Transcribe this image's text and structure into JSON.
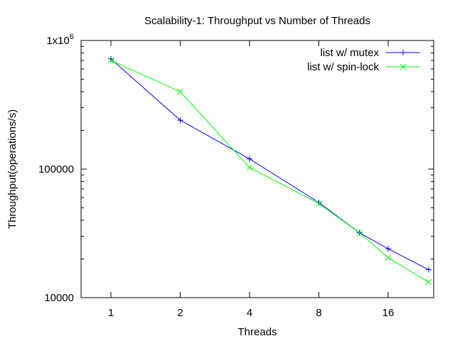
{
  "chart_data": {
    "type": "line",
    "title": "Scalability-1: Throughput vs Number of Threads",
    "xlabel": "Threads",
    "ylabel": "Throughput(operations/s)",
    "x_scale": "log2",
    "y_scale": "log10",
    "xlim": [
      0.75,
      24
    ],
    "ylim": [
      10000,
      1000000
    ],
    "x_ticks": [
      {
        "value": 1,
        "label": "1"
      },
      {
        "value": 2,
        "label": "2"
      },
      {
        "value": 4,
        "label": "4"
      },
      {
        "value": 8,
        "label": "8"
      },
      {
        "value": 16,
        "label": "16"
      }
    ],
    "y_ticks": [
      {
        "value": 10000,
        "label": "10000"
      },
      {
        "value": 100000,
        "label": "100000"
      },
      {
        "value": 1000000,
        "label": "1x10",
        "sup": "6"
      }
    ],
    "legend_position": "top-right",
    "grid": false,
    "series": [
      {
        "name": "list w/ mutex",
        "color": "#0000ff",
        "marker": "plus",
        "x": [
          1,
          2,
          4,
          8,
          12,
          16,
          24
        ],
        "y": [
          720000,
          240000,
          120000,
          55000,
          32000,
          24000,
          16500
        ]
      },
      {
        "name": "list w/ spin-lock",
        "color": "#00ff00",
        "marker": "cross",
        "x": [
          1,
          2,
          4,
          8,
          12,
          16,
          24
        ],
        "y": [
          700000,
          400000,
          103000,
          54000,
          32000,
          20500,
          13200
        ]
      }
    ]
  }
}
